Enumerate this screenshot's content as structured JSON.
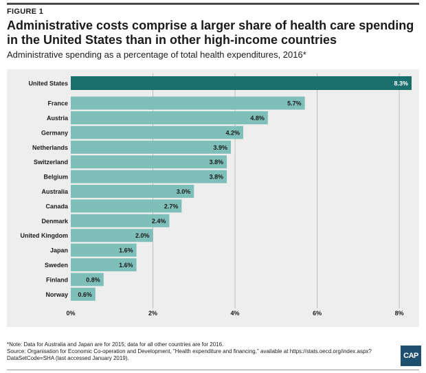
{
  "figure_label": "FIGURE 1",
  "logo_text": "CAP",
  "note": "*Note: Data for Australia and Japan are for 2015; data for all other countries are for 2016.",
  "source": "Source: Organisation for Economic Co-operation and Development, \"Health expenditure and financing,\" available at https://stats.oecd.org/index.aspx?DataSetCode=SHA (last accessed January 2019).",
  "colors": {
    "highlight": "#1a6e6b",
    "bar": "#7fbfba",
    "plot_bg": "#eeeeee",
    "grid": "#bdbdbd"
  },
  "chart_data": {
    "type": "bar",
    "orientation": "horizontal",
    "title": "Administrative costs comprise a larger share of health care spending in the United States than in other high-income countries",
    "subtitle": "Administrative spending as a percentage of total health expenditures, 2016*",
    "categories": [
      "United States",
      "France",
      "Austria",
      "Germany",
      "Netherlands",
      "Switzerland",
      "Belgium",
      "Australia",
      "Canada",
      "Denmark",
      "United Kingdom",
      "Japan",
      "Sweden",
      "Finland",
      "Norway"
    ],
    "values": [
      8.3,
      5.7,
      4.8,
      4.2,
      3.9,
      3.8,
      3.8,
      3.0,
      2.7,
      2.4,
      2.0,
      1.6,
      1.6,
      0.8,
      0.6
    ],
    "value_labels": [
      "8.3%",
      "5.7%",
      "4.8%",
      "4.2%",
      "3.9%",
      "3.8%",
      "3.8%",
      "3.0%",
      "2.7%",
      "2.4%",
      "2.0%",
      "1.6%",
      "1.6%",
      "0.8%",
      "0.6%"
    ],
    "highlight": "United States",
    "xlim": [
      0,
      8.4
    ],
    "xticks": [
      0,
      2,
      4,
      6,
      8
    ],
    "xtick_labels": [
      "0%",
      "2%",
      "4%",
      "6%",
      "8%"
    ],
    "grid": true
  }
}
